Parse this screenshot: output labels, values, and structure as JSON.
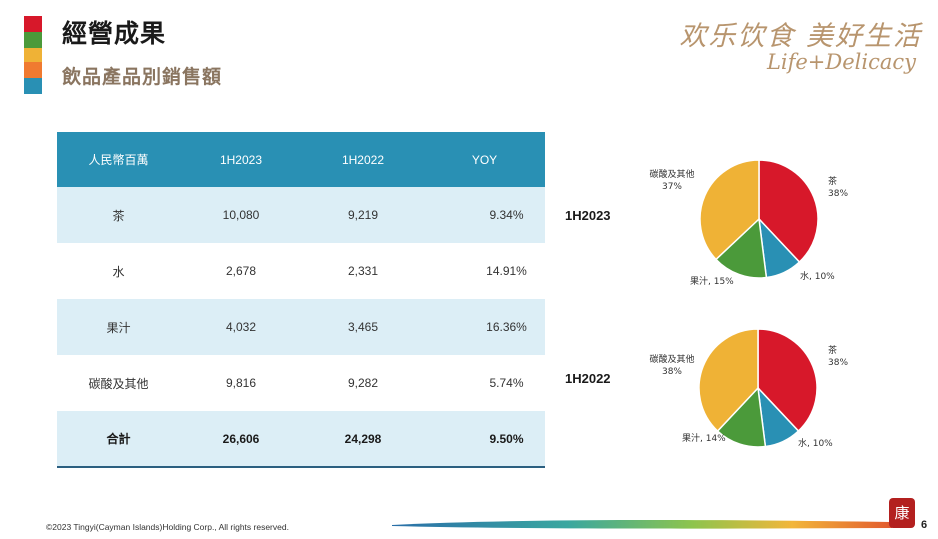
{
  "colors": {
    "red": "#d7182a",
    "green": "#4b9a3a",
    "yellow": "#efb236",
    "orange": "#f07a30",
    "blue": "#2990b4",
    "header": "#2990b4",
    "row_alt": "#dceef6",
    "subtitle": "#8a7560",
    "brand": "#b8956e"
  },
  "header": {
    "title": "經營成果",
    "subtitle": "飲品產品別銷售額"
  },
  "brand": {
    "chinese": "欢乐饮食 美好生活",
    "english": "Life+Delicacy"
  },
  "table": {
    "columns": [
      "人民幣百萬",
      "1H2023",
      "1H2022",
      "YOY"
    ],
    "rows": [
      [
        "茶",
        "10,080",
        "9,219",
        "9.34%"
      ],
      [
        "水",
        "2,678",
        "2,331",
        "14.91%"
      ],
      [
        "果汁",
        "4,032",
        "3,465",
        "16.36%"
      ],
      [
        "碳酸及其他",
        "9,816",
        "9,282",
        "5.74%"
      ]
    ],
    "total": [
      "合計",
      "26,606",
      "24,298",
      "9.50%"
    ]
  },
  "chart_data": [
    {
      "type": "pie",
      "title": "1H2023",
      "categories": [
        "茶",
        "水",
        "果汁",
        "碳酸及其他"
      ],
      "values": [
        38,
        10,
        15,
        37
      ],
      "labels": [
        "茶\n38%",
        "水, 10%",
        "果汁, 15%",
        "碳酸及其他\n37%"
      ],
      "colors": [
        "#d7182a",
        "#2990b4",
        "#4b9a3a",
        "#efb236"
      ]
    },
    {
      "type": "pie",
      "title": "1H2022",
      "categories": [
        "茶",
        "水",
        "果汁",
        "碳酸及其他"
      ],
      "values": [
        38,
        10,
        14,
        38
      ],
      "labels": [
        "茶\n38%",
        "水, 10%",
        "果汁, 14%",
        "碳酸及其他\n38%"
      ],
      "colors": [
        "#d7182a",
        "#2990b4",
        "#4b9a3a",
        "#efb236"
      ]
    }
  ],
  "footer": {
    "copyright": "©2023 Tingyi(Cayman Islands)Holding Corp., All rights reserved.",
    "seal_char": "康",
    "page_number": "6"
  }
}
